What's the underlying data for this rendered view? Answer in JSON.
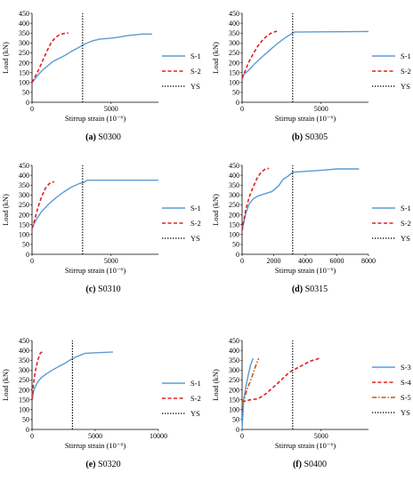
{
  "chart_data": [
    {
      "type": "line",
      "caption_letter": "(a)",
      "caption_name": "S0300",
      "xlabel": "Stirrup strain (10⁻⁶)",
      "ylabel": "Load (kN)",
      "xlim": [
        0,
        8000
      ],
      "ylim": [
        0,
        450
      ],
      "xticks": [
        0,
        5000
      ],
      "yticks": [
        0,
        50,
        100,
        150,
        200,
        250,
        300,
        350,
        400,
        450
      ],
      "series": [
        {
          "name": "S-1",
          "color": "#5b9bd5",
          "dash": "solid",
          "x": [
            0,
            150,
            400,
            700,
            1000,
            1300,
            1700,
            2100,
            2500,
            2900,
            3300,
            3800,
            4300,
            5100,
            5500,
            6100,
            7000,
            7600
          ],
          "y": [
            100,
            115,
            140,
            165,
            185,
            205,
            222,
            238,
            258,
            275,
            293,
            310,
            320,
            325,
            330,
            338,
            345,
            345
          ]
        },
        {
          "name": "S-2",
          "color": "#e02020",
          "dash": "dashed",
          "x": [
            0,
            200,
            450,
            700,
            950,
            1200,
            1450,
            1700,
            2000,
            2300
          ],
          "y": [
            100,
            130,
            170,
            215,
            260,
            300,
            325,
            340,
            348,
            350
          ]
        },
        {
          "name": "YS",
          "color": "#000000",
          "dash": "dotted",
          "x": [
            3200,
            3200
          ],
          "y": [
            0,
            450
          ]
        }
      ]
    },
    {
      "type": "line",
      "caption_letter": "(b)",
      "caption_name": "S0305",
      "xlabel": "Stirrup strain (10⁻⁶)",
      "ylabel": "Load (kN)",
      "xlim": [
        0,
        8000
      ],
      "ylim": [
        0,
        450
      ],
      "xticks": [
        0,
        5000
      ],
      "yticks": [
        0,
        50,
        100,
        150,
        200,
        250,
        300,
        350,
        400,
        450
      ],
      "series": [
        {
          "name": "S-1",
          "color": "#5b9bd5",
          "dash": "solid",
          "x": [
            0,
            100,
            400,
            800,
            1200,
            1700,
            2200,
            2700,
            3100,
            3300,
            4000,
            6000,
            8000
          ],
          "y": [
            120,
            140,
            160,
            195,
            225,
            260,
            295,
            325,
            345,
            355,
            356,
            357,
            358
          ]
        },
        {
          "name": "S-2",
          "color": "#e02020",
          "dash": "dashed",
          "x": [
            0,
            150,
            400,
            700,
            1000,
            1300,
            1600,
            1900,
            2200
          ],
          "y": [
            120,
            150,
            200,
            245,
            285,
            315,
            338,
            352,
            360
          ]
        },
        {
          "name": "YS",
          "color": "#000000",
          "dash": "dotted",
          "x": [
            3200,
            3200
          ],
          "y": [
            0,
            450
          ]
        }
      ]
    },
    {
      "type": "line",
      "caption_letter": "(c)",
      "caption_name": "S0310",
      "xlabel": "Stirrup strain (10⁻⁶)",
      "ylabel": "Load (kN)",
      "xlim": [
        0,
        8000
      ],
      "ylim": [
        0,
        450
      ],
      "xticks": [
        0,
        5000
      ],
      "yticks": [
        0,
        50,
        100,
        150,
        200,
        250,
        300,
        350,
        400,
        450
      ],
      "series": [
        {
          "name": "S-1",
          "color": "#5b9bd5",
          "dash": "solid",
          "x": [
            0,
            100,
            300,
            600,
            1000,
            1500,
            2000,
            2500,
            3000,
            3300,
            3500,
            4000,
            6000,
            8000
          ],
          "y": [
            130,
            150,
            180,
            215,
            250,
            285,
            315,
            340,
            358,
            365,
            375,
            375,
            375,
            375
          ]
        },
        {
          "name": "S-2",
          "color": "#e02020",
          "dash": "dashed",
          "x": [
            0,
            150,
            350,
            600,
            850,
            1100,
            1400
          ],
          "y": [
            130,
            170,
            230,
            290,
            335,
            358,
            368
          ]
        },
        {
          "name": "YS",
          "color": "#000000",
          "dash": "dotted",
          "x": [
            3200,
            3200
          ],
          "y": [
            0,
            450
          ]
        }
      ]
    },
    {
      "type": "line",
      "caption_letter": "(d)",
      "caption_name": "S0315",
      "xlabel": "Stirrup strain (10⁻⁶)",
      "ylabel": "Load (kN)",
      "xlim": [
        0,
        8000
      ],
      "ylim": [
        0,
        450
      ],
      "xticks": [
        0,
        2000,
        4000,
        6000,
        8000
      ],
      "yticks": [
        0,
        50,
        100,
        150,
        200,
        250,
        300,
        350,
        400,
        450
      ],
      "series": [
        {
          "name": "S-1",
          "color": "#5b9bd5",
          "dash": "solid",
          "x": [
            0,
            100,
            250,
            450,
            700,
            1000,
            1400,
            1900,
            2300,
            2600,
            2900,
            3200,
            4000,
            5000,
            6000,
            7400
          ],
          "y": [
            120,
            160,
            210,
            255,
            280,
            295,
            305,
            318,
            345,
            380,
            395,
            415,
            420,
            425,
            432,
            432
          ]
        },
        {
          "name": "S-2",
          "color": "#e02020",
          "dash": "dashed",
          "x": [
            0,
            100,
            250,
            450,
            700,
            950,
            1200,
            1450,
            1700
          ],
          "y": [
            120,
            170,
            230,
            290,
            340,
            385,
            415,
            430,
            435
          ]
        },
        {
          "name": "YS",
          "color": "#000000",
          "dash": "dotted",
          "x": [
            3200,
            3200
          ],
          "y": [
            0,
            450
          ]
        }
      ]
    },
    {
      "type": "line",
      "caption_letter": "(e)",
      "caption_name": "S0320",
      "xlabel": "Stirrup strain (10⁻⁶)",
      "ylabel": "Load (kN)",
      "xlim": [
        0,
        10000
      ],
      "ylim": [
        0,
        450
      ],
      "xticks": [
        0,
        5000,
        10000
      ],
      "yticks": [
        0,
        50,
        100,
        150,
        200,
        250,
        300,
        350,
        400,
        450
      ],
      "series": [
        {
          "name": "S-1",
          "color": "#5b9bd5",
          "dash": "solid",
          "x": [
            0,
            150,
            400,
            700,
            1100,
            1600,
            2100,
            2600,
            3100,
            3600,
            4200,
            5000,
            5800,
            6400
          ],
          "y": [
            150,
            200,
            235,
            260,
            280,
            300,
            318,
            335,
            355,
            370,
            385,
            388,
            390,
            392
          ]
        },
        {
          "name": "S-2",
          "color": "#e02020",
          "dash": "dashed",
          "x": [
            0,
            100,
            250,
            450,
            650,
            850
          ],
          "y": [
            150,
            220,
            290,
            350,
            385,
            395
          ]
        },
        {
          "name": "YS",
          "color": "#000000",
          "dash": "dotted",
          "x": [
            3200,
            3200
          ],
          "y": [
            0,
            450
          ]
        }
      ]
    },
    {
      "type": "line",
      "caption_letter": "(f)",
      "caption_name": "S0400",
      "xlabel": "Stirrup strain (10⁻⁶)",
      "ylabel": "Load (kN)",
      "xlim": [
        0,
        8000
      ],
      "ylim": [
        0,
        450
      ],
      "xticks": [
        0,
        5000
      ],
      "yticks": [
        0,
        50,
        100,
        150,
        200,
        250,
        300,
        350,
        400,
        450
      ],
      "series": [
        {
          "name": "S-3",
          "color": "#5b9bd5",
          "dash": "solid",
          "x": [
            0,
            100,
            250,
            400,
            550,
            700
          ],
          "y": [
            0,
            150,
            220,
            280,
            330,
            360
          ]
        },
        {
          "name": "S-4",
          "color": "#e02020",
          "dash": "dashed",
          "x": [
            0,
            500,
            1000,
            1500,
            2200,
            3000,
            3700,
            4300,
            4900
          ],
          "y": [
            140,
            150,
            155,
            180,
            230,
            290,
            320,
            345,
            360
          ]
        },
        {
          "name": "S-5",
          "color": "#c55a11",
          "dash": "dashdot",
          "x": [
            0,
            150,
            350,
            600,
            850,
            1050
          ],
          "y": [
            130,
            160,
            210,
            260,
            320,
            360
          ]
        },
        {
          "name": "YS",
          "color": "#000000",
          "dash": "dotted",
          "x": [
            3200,
            3200
          ],
          "y": [
            0,
            450
          ]
        }
      ]
    }
  ]
}
